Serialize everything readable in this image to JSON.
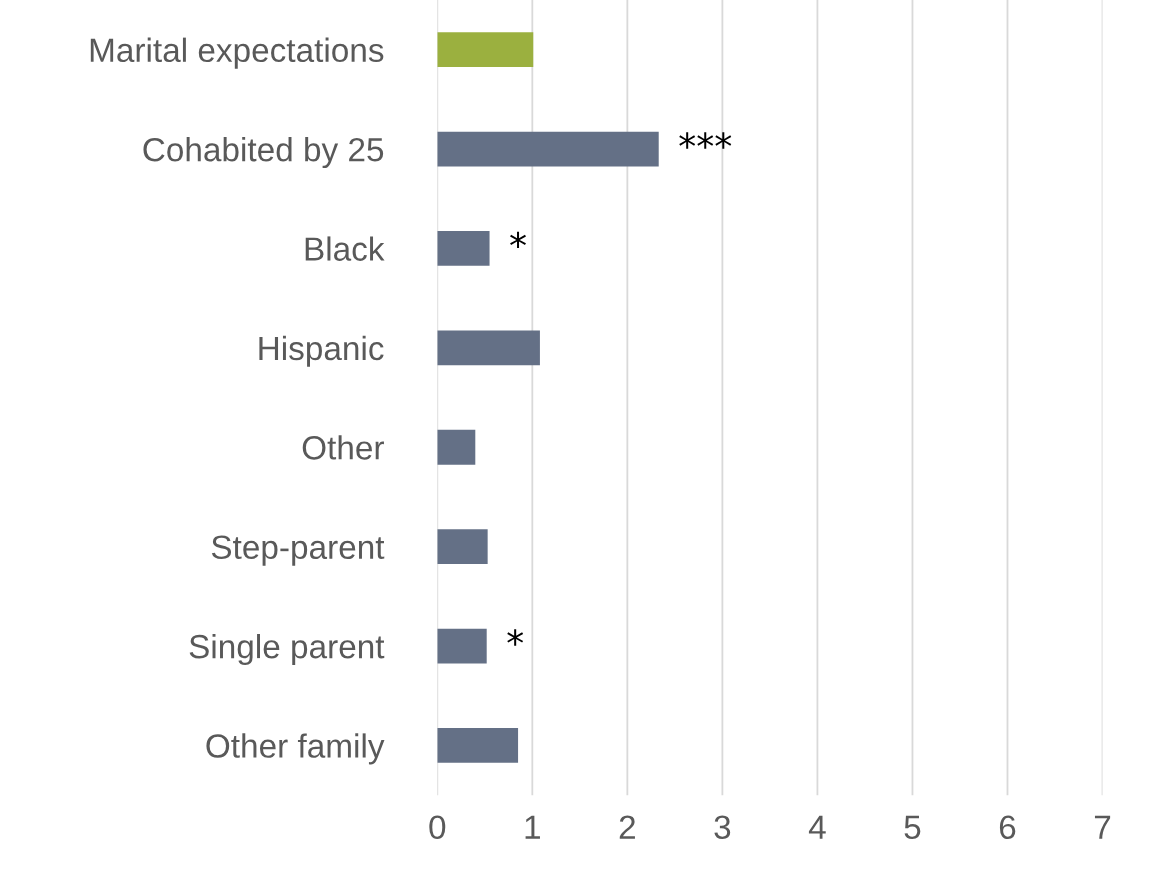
{
  "chart_data": {
    "type": "bar",
    "orientation": "horizontal",
    "categories": [
      "Marital expectations",
      "Cohabited by 25",
      "Black",
      "Hispanic",
      "Other",
      "Step-parent",
      "Single parent",
      "Other family"
    ],
    "values": [
      1.01,
      2.33,
      0.55,
      1.08,
      0.4,
      0.53,
      0.52,
      0.85
    ],
    "colors": [
      "#9bb03f",
      "#647086",
      "#647086",
      "#647086",
      "#647086",
      "#647086",
      "#647086",
      "#647086"
    ],
    "xlim": [
      0,
      7
    ],
    "xticks": [
      0,
      1,
      2,
      3,
      4,
      5,
      6,
      7
    ],
    "grid": "x",
    "annotations": [
      {
        "text": "***",
        "x": 2.33,
        "y": "Cohabited by 25"
      },
      {
        "text": "*",
        "x": 0.55,
        "y": "Black"
      },
      {
        "text": "*",
        "x": 0.52,
        "y": "Single parent"
      }
    ]
  }
}
